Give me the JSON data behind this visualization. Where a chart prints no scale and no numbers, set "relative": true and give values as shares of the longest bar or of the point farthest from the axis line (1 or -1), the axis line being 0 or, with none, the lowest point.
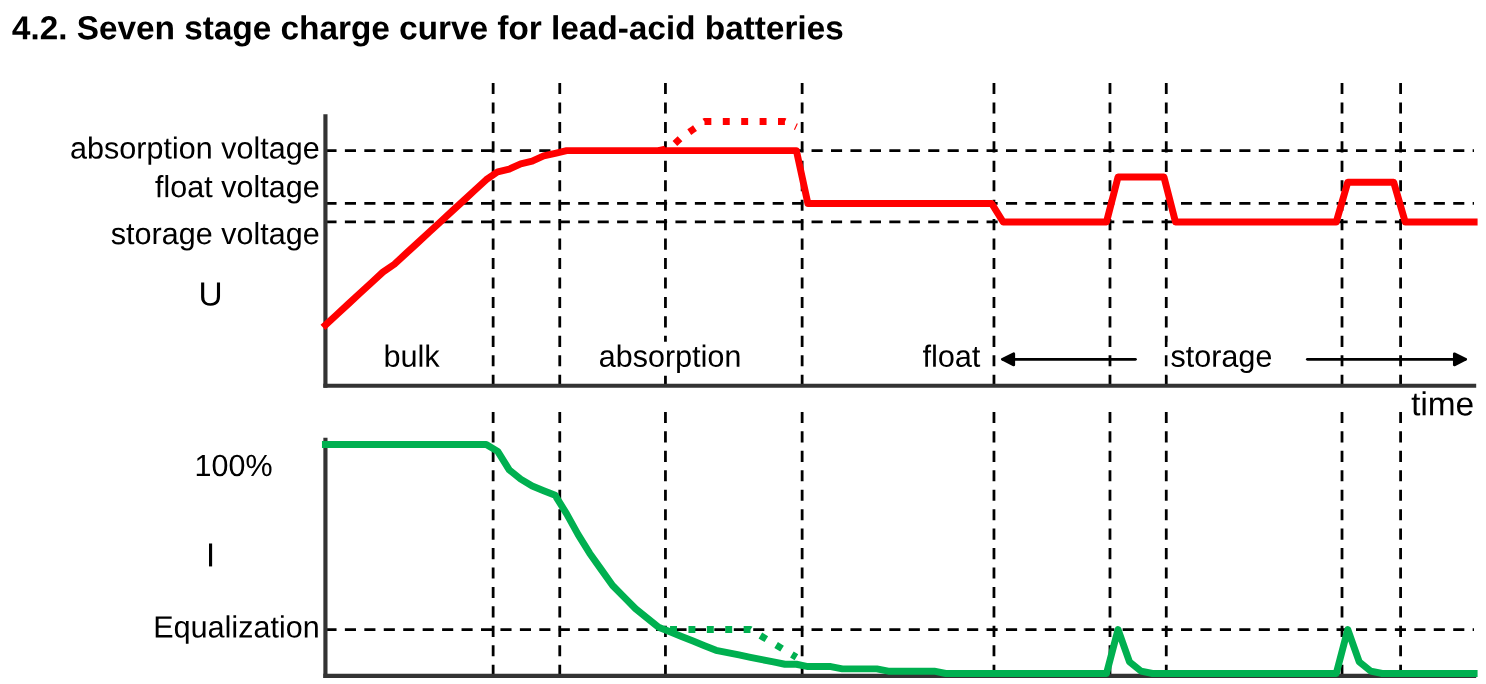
{
  "chart_data": [
    {
      "type": "line",
      "title": "4.2. Seven stage charge curve for lead-acid batteries",
      "ylabel": "U",
      "xlabel": "time",
      "relative": true,
      "categories": [
        null,
        null,
        null,
        null,
        null,
        null,
        null,
        null,
        null,
        null,
        null,
        null,
        null,
        null,
        null,
        null,
        null,
        null,
        null,
        null,
        null,
        null,
        null,
        null,
        null,
        null,
        null,
        null,
        null,
        null,
        null,
        null,
        null,
        null,
        null,
        null,
        null,
        null,
        null,
        null,
        null,
        null,
        null,
        null,
        null,
        null,
        null,
        null,
        null,
        null,
        null,
        null,
        null,
        null,
        null,
        null,
        null,
        null,
        null,
        null,
        null,
        null,
        null,
        null,
        null,
        null,
        null,
        null,
        null,
        null,
        null,
        null,
        null,
        null,
        null,
        null,
        null,
        null,
        null,
        null,
        null,
        null,
        null,
        null,
        null,
        null,
        null,
        null,
        null,
        null,
        null,
        null,
        null,
        null,
        null,
        null,
        null,
        null,
        null,
        null,
        null
      ],
      "series": [
        {
          "color": "#ff0000",
          "line_style": "solid",
          "values": [
            0.23,
            0.27,
            0.31,
            0.35,
            0.39,
            0.43,
            0.46,
            0.5,
            0.54,
            0.58,
            0.62,
            0.66,
            0.7,
            0.74,
            0.78,
            0.81,
            0.82,
            0.84,
            0.85,
            0.87,
            0.88,
            0.89,
            0.89,
            0.89,
            0.89,
            0.89,
            0.89,
            0.89,
            0.89,
            0.89,
            0.89,
            0.89,
            0.89,
            0.89,
            0.89,
            0.89,
            0.89,
            0.89,
            0.89,
            0.89,
            0.89,
            0.89,
            0.69,
            0.69,
            0.69,
            0.69,
            0.69,
            0.69,
            0.69,
            0.69,
            0.69,
            0.69,
            0.69,
            0.69,
            0.69,
            0.69,
            0.69,
            0.69,
            0.69,
            0.62,
            0.62,
            0.62,
            0.62,
            0.62,
            0.62,
            0.62,
            0.62,
            0.62,
            0.62,
            0.79,
            0.79,
            0.79,
            0.79,
            0.79,
            0.62,
            0.62,
            0.62,
            0.62,
            0.62,
            0.62,
            0.62,
            0.62,
            0.62,
            0.62,
            0.62,
            0.62,
            0.62,
            0.62,
            0.62,
            0.77,
            0.77,
            0.77,
            0.77,
            0.77,
            0.62,
            0.62,
            0.62,
            0.62,
            0.62,
            0.62,
            0.62
          ]
        },
        {
          "color": "#ff0000",
          "line_style": "dotted",
          "values": [
            null,
            null,
            null,
            null,
            null,
            null,
            null,
            null,
            null,
            null,
            null,
            null,
            null,
            null,
            null,
            null,
            null,
            null,
            null,
            null,
            null,
            null,
            null,
            null,
            null,
            null,
            null,
            null,
            null,
            0.89,
            0.9,
            0.94,
            0.97,
            1.0,
            1.0,
            1.0,
            1.0,
            1.0,
            1.0,
            1.0,
            1.0,
            0.98,
            null,
            null,
            null,
            null,
            null,
            null,
            null,
            null,
            null,
            null,
            null,
            null,
            null,
            null,
            null,
            null,
            null,
            null,
            null,
            null,
            null,
            null,
            null,
            null,
            null,
            null,
            null,
            null,
            null,
            null,
            null,
            null,
            null,
            null,
            null,
            null,
            null,
            null,
            null,
            null,
            null,
            null,
            null,
            null,
            null,
            null,
            null,
            null,
            null,
            null,
            null,
            null,
            null,
            null,
            null,
            null,
            null,
            null,
            null
          ]
        }
      ],
      "ref_lines": [
        {
          "axis": "y",
          "value": 0.89,
          "label": "absorption voltage"
        },
        {
          "axis": "y",
          "value": 0.69,
          "label": "float voltage"
        },
        {
          "axis": "y",
          "value": 0.62,
          "label": "storage voltage"
        }
      ],
      "annotations": [
        "bulk",
        "absorption",
        "float",
        "storage"
      ]
    },
    {
      "type": "line",
      "ylabel": "I",
      "relative": true,
      "categories": [
        null,
        null,
        null,
        null,
        null,
        null,
        null,
        null,
        null,
        null,
        null,
        null,
        null,
        null,
        null,
        null,
        null,
        null,
        null,
        null,
        null,
        null,
        null,
        null,
        null,
        null,
        null,
        null,
        null,
        null,
        null,
        null,
        null,
        null,
        null,
        null,
        null,
        null,
        null,
        null,
        null,
        null,
        null,
        null,
        null,
        null,
        null,
        null,
        null,
        null,
        null,
        null,
        null,
        null,
        null,
        null,
        null,
        null,
        null,
        null,
        null,
        null,
        null,
        null,
        null,
        null,
        null,
        null,
        null,
        null,
        null,
        null,
        null,
        null,
        null,
        null,
        null,
        null,
        null,
        null,
        null,
        null,
        null,
        null,
        null,
        null,
        null,
        null,
        null,
        null,
        null,
        null,
        null,
        null,
        null,
        null,
        null,
        null,
        null,
        null,
        null
      ],
      "series": [
        {
          "color": "#00b050",
          "line_style": "solid",
          "values": [
            1.0,
            1.0,
            1.0,
            1.0,
            1.0,
            1.0,
            1.0,
            1.0,
            1.0,
            1.0,
            1.0,
            1.0,
            1.0,
            1.0,
            1.0,
            0.97,
            0.89,
            0.85,
            0.82,
            0.8,
            0.78,
            0.7,
            0.61,
            0.53,
            0.46,
            0.39,
            0.34,
            0.29,
            0.25,
            0.21,
            0.19,
            0.17,
            0.15,
            0.13,
            0.11,
            0.1,
            0.09,
            0.08,
            0.07,
            0.06,
            0.05,
            0.05,
            0.04,
            0.04,
            0.04,
            0.03,
            0.03,
            0.03,
            0.03,
            0.02,
            0.02,
            0.02,
            0.02,
            0.02,
            0.01,
            0.01,
            0.01,
            0.01,
            0.01,
            0.01,
            0.01,
            0.01,
            0.01,
            0.01,
            0.01,
            0.01,
            0.01,
            0.01,
            0.01,
            0.2,
            0.06,
            0.02,
            0.01,
            0.01,
            0.01,
            0.01,
            0.01,
            0.01,
            0.01,
            0.01,
            0.01,
            0.01,
            0.01,
            0.01,
            0.01,
            0.01,
            0.01,
            0.01,
            0.01,
            0.2,
            0.06,
            0.02,
            0.01,
            0.01,
            0.01,
            0.01,
            0.01,
            0.01,
            0.01,
            0.01,
            0.01
          ]
        },
        {
          "color": "#00b050",
          "line_style": "dotted",
          "values": [
            null,
            null,
            null,
            null,
            null,
            null,
            null,
            null,
            null,
            null,
            null,
            null,
            null,
            null,
            null,
            null,
            null,
            null,
            null,
            null,
            null,
            null,
            null,
            null,
            null,
            null,
            null,
            null,
            null,
            null,
            0.2,
            0.2,
            0.2,
            0.2,
            0.2,
            0.2,
            0.2,
            0.2,
            0.17,
            0.14,
            0.11,
            0.08,
            null,
            null,
            null,
            null,
            null,
            null,
            null,
            null,
            null,
            null,
            null,
            null,
            null,
            null,
            null,
            null,
            null,
            null,
            null,
            null,
            null,
            null,
            null,
            null,
            null,
            null,
            null,
            null,
            null,
            null,
            null,
            null,
            null,
            null,
            null,
            null,
            null,
            null,
            null,
            null,
            null,
            null,
            null,
            null,
            null,
            null,
            null,
            null,
            null,
            null,
            null,
            null,
            null,
            null,
            null,
            null,
            null,
            null,
            null
          ]
        }
      ],
      "ref_lines": [
        {
          "axis": "y",
          "value": 0.2,
          "label": "Equalization"
        }
      ],
      "annotations": [
        "100%"
      ]
    }
  ]
}
